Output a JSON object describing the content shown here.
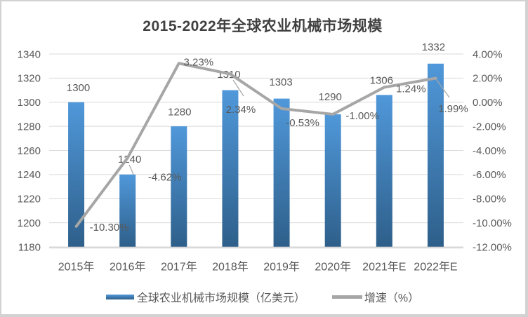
{
  "chart_data": {
    "type": "bar+line",
    "title": "2015-2022年全球农业机械市场规模",
    "categories": [
      "2015年",
      "2016年",
      "2017年",
      "2018年",
      "2019年",
      "2020年",
      "2021年E",
      "2022年E"
    ],
    "series": [
      {
        "name": "全球农业机械市场规模（亿美元）",
        "type": "bar",
        "axis": "left",
        "values": [
          1300,
          1240,
          1280,
          1310,
          1303,
          1290,
          1306,
          1332
        ],
        "labels": [
          "1300",
          "1240",
          "1280",
          "1310",
          "1303",
          "1290",
          "1306",
          "1332"
        ],
        "color_top": "#5098da",
        "color_bottom": "#2e5f8a"
      },
      {
        "name": "增速（%）",
        "type": "line",
        "axis": "right",
        "values": [
          -10.3,
          -4.62,
          3.23,
          2.34,
          -0.53,
          -1.0,
          1.24,
          1.99
        ],
        "labels": [
          "-10.30%",
          "-4.62%",
          "3.23%",
          "2.34%",
          "-0.53%",
          "-1.00%",
          "1.24%",
          "1.99%"
        ],
        "color": "#a6a6a6"
      }
    ],
    "left_axis": {
      "min": 1180,
      "max": 1340,
      "ticks": [
        "1340",
        "1320",
        "1300",
        "1280",
        "1260",
        "1240",
        "1220",
        "1200",
        "1180"
      ]
    },
    "right_axis": {
      "min": -12,
      "max": 4,
      "ticks": [
        "4.00%",
        "2.00%",
        "0.00%",
        "-2.00%",
        "-4.00%",
        "-6.00%",
        "-8.00%",
        "-10.00%",
        "-12.00%"
      ]
    },
    "grid": true,
    "legend_position": "bottom",
    "colors": {
      "grid": "#d9d9d9",
      "axis_line": "#d9d9d9",
      "text": "#595959",
      "title": "#404040",
      "leader": "#a6a6a6",
      "border": "#d2d2d2"
    }
  }
}
